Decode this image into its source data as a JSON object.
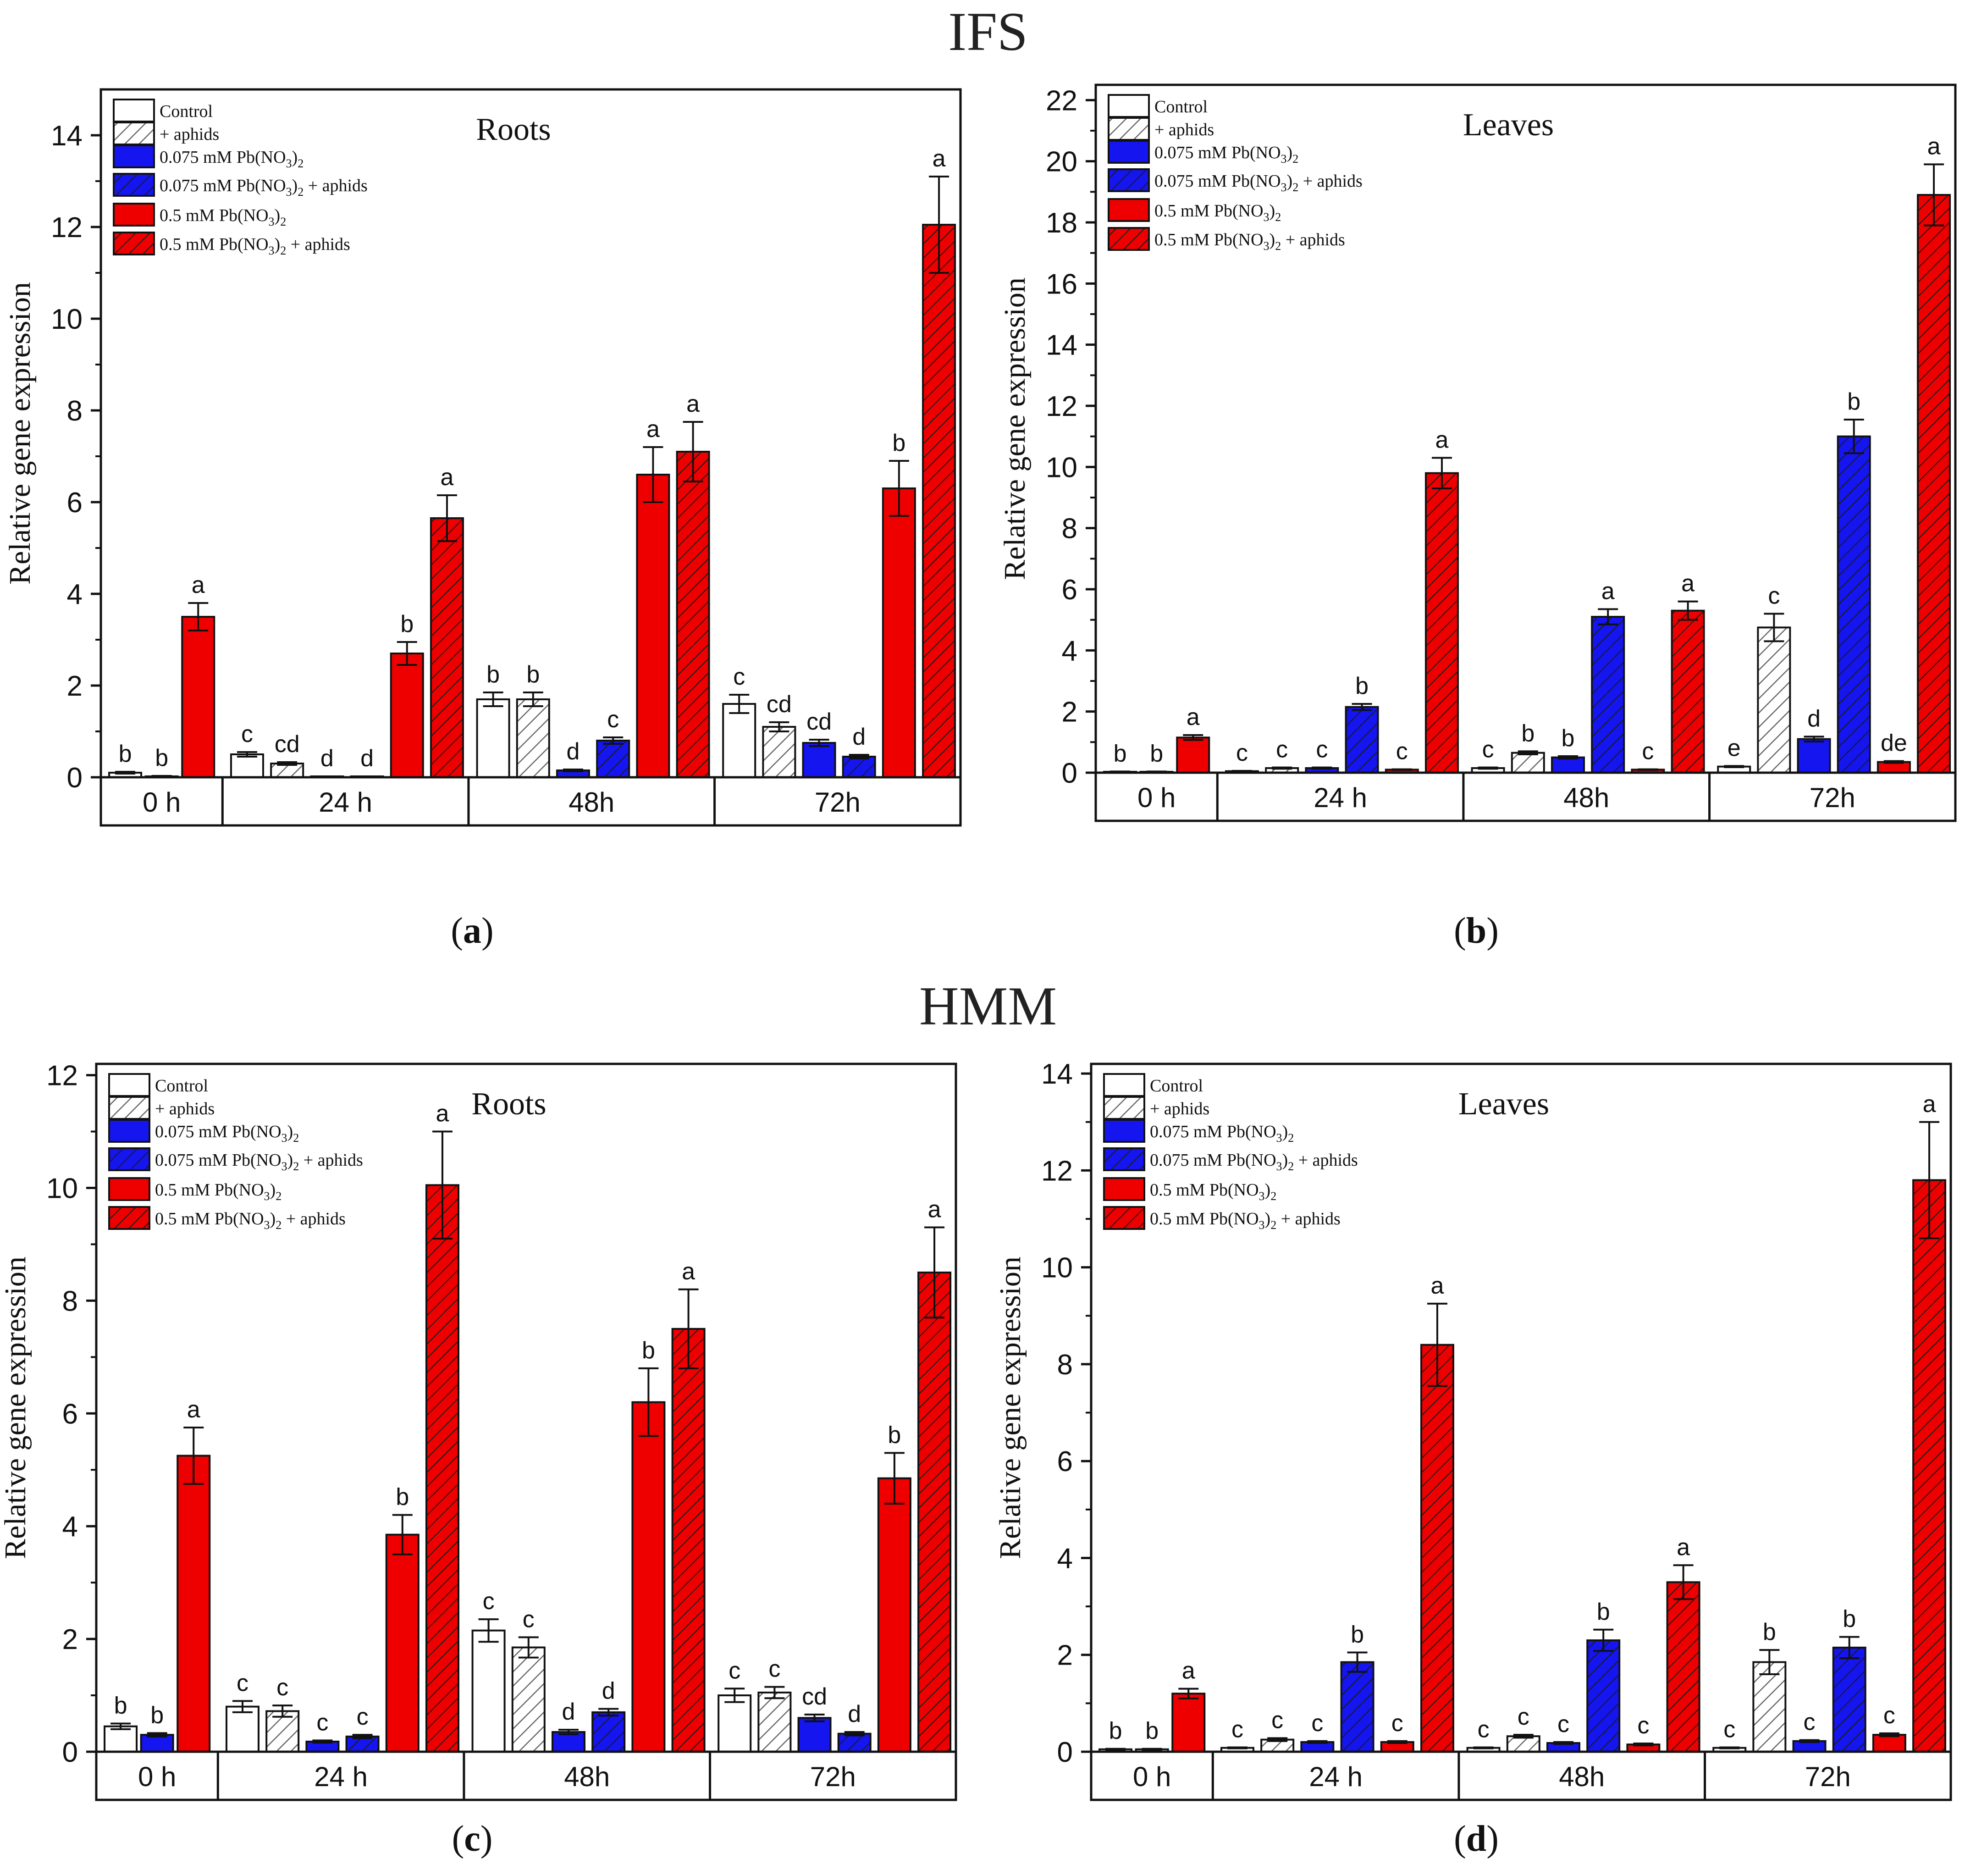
{
  "figure": {
    "groups": [
      "IFS",
      "HMM"
    ],
    "panel_labels": [
      "a",
      "b",
      "c",
      "d"
    ]
  },
  "colors": {
    "control": "#ffffff",
    "blue": "#1515f0",
    "red": "#ee0000",
    "hatch_gray": "#666666",
    "axis": "#111111"
  },
  "legend": {
    "entries": [
      {
        "parts": [
          {
            "t": "Control"
          }
        ],
        "fill": "white",
        "hatch": false
      },
      {
        "parts": [
          {
            "t": "+ aphids"
          }
        ],
        "fill": "white",
        "hatch": true
      },
      {
        "parts": [
          {
            "t": "0.075 mM Pb(NO"
          },
          {
            "t": "3",
            "sub": true
          },
          {
            "t": ")"
          },
          {
            "t": "2",
            "sub": true
          }
        ],
        "fill": "blue",
        "hatch": false
      },
      {
        "parts": [
          {
            "t": "0.075 mM Pb(NO"
          },
          {
            "t": "3",
            "sub": true
          },
          {
            "t": ")"
          },
          {
            "t": "2",
            "sub": true
          },
          {
            "t": " +  aphids"
          }
        ],
        "fill": "blue",
        "hatch": true
      },
      {
        "parts": [
          {
            "t": "0.5 mM Pb(NO"
          },
          {
            "t": "3",
            "sub": true
          },
          {
            "t": ")"
          },
          {
            "t": "2",
            "sub": true
          }
        ],
        "fill": "red",
        "hatch": false
      },
      {
        "parts": [
          {
            "t": "0.5 mM Pb(NO"
          },
          {
            "t": "3",
            "sub": true
          },
          {
            "t": ")"
          },
          {
            "t": "2",
            "sub": true
          },
          {
            "t": " + aphids"
          }
        ],
        "fill": "red",
        "hatch": true
      }
    ]
  },
  "chart_data": [
    {
      "id": "a",
      "group": "IFS",
      "type": "bar",
      "title": "Roots",
      "ylabel": "Relative gene expression",
      "ylim": [
        0,
        15
      ],
      "yticks": [
        0,
        2,
        4,
        6,
        8,
        10,
        12,
        14
      ],
      "time_labels": [
        "0 h",
        "24 h",
        "48h",
        "72h"
      ],
      "bars": [
        {
          "time": "0 h",
          "treatment": "Control",
          "value": 0.1,
          "err": 0.02,
          "letter": "b"
        },
        {
          "time": "0 h",
          "treatment": "+ aphids",
          "value": 0.02,
          "err": 0.01,
          "letter": "b"
        },
        {
          "time": "0 h",
          "treatment": "0.5 mM Pb(NO3)2",
          "value": 3.5,
          "err": 0.3,
          "letter": "a"
        },
        {
          "time": "24 h",
          "treatment": "Control",
          "value": 0.5,
          "err": 0.05,
          "letter": "c"
        },
        {
          "time": "24 h",
          "treatment": "+ aphids",
          "value": 0.3,
          "err": 0.03,
          "letter": "cd"
        },
        {
          "time": "24 h",
          "treatment": "0.075 mM Pb(NO3)2",
          "value": 0.02,
          "err": 0.0,
          "letter": "d"
        },
        {
          "time": "24 h",
          "treatment": "0.075 mM Pb(NO3)2 + aphids",
          "value": 0.02,
          "err": 0.0,
          "letter": "d"
        },
        {
          "time": "24 h",
          "treatment": "0.5 mM Pb(NO3)2",
          "value": 2.7,
          "err": 0.25,
          "letter": "b"
        },
        {
          "time": "24 h",
          "treatment": "0.5 mM Pb(NO3)2 + aphids",
          "value": 5.65,
          "err": 0.5,
          "letter": "a"
        },
        {
          "time": "48h",
          "treatment": "Control",
          "value": 1.7,
          "err": 0.15,
          "letter": "b"
        },
        {
          "time": "48h",
          "treatment": "+ aphids",
          "value": 1.7,
          "err": 0.15,
          "letter": "b"
        },
        {
          "time": "48h",
          "treatment": "0.075 mM Pb(NO3)2",
          "value": 0.15,
          "err": 0.02,
          "letter": "d"
        },
        {
          "time": "48h",
          "treatment": "0.075 mM Pb(NO3)2 + aphids",
          "value": 0.8,
          "err": 0.07,
          "letter": "c"
        },
        {
          "time": "48h",
          "treatment": "0.5 mM Pb(NO3)2",
          "value": 6.6,
          "err": 0.6,
          "letter": "a"
        },
        {
          "time": "48h",
          "treatment": "0.5 mM Pb(NO3)2 + aphids",
          "value": 7.1,
          "err": 0.65,
          "letter": "a"
        },
        {
          "time": "72h",
          "treatment": "Control",
          "value": 1.6,
          "err": 0.2,
          "letter": "c"
        },
        {
          "time": "72h",
          "treatment": "+ aphids",
          "value": 1.1,
          "err": 0.1,
          "letter": "cd"
        },
        {
          "time": "72h",
          "treatment": "0.075 mM Pb(NO3)2",
          "value": 0.75,
          "err": 0.07,
          "letter": "cd"
        },
        {
          "time": "72h",
          "treatment": "0.075 mM Pb(NO3)2 + aphids",
          "value": 0.45,
          "err": 0.04,
          "letter": "d"
        },
        {
          "time": "72h",
          "treatment": "0.5 mM Pb(NO3)2",
          "value": 6.3,
          "err": 0.6,
          "letter": "b"
        },
        {
          "time": "72h",
          "treatment": "0.5 mM Pb(NO3)2 + aphids",
          "value": 12.05,
          "err": 1.05,
          "letter": "a"
        }
      ]
    },
    {
      "id": "b",
      "group": "IFS",
      "type": "bar",
      "title": "Leaves",
      "ylabel": "Relative gene expression",
      "ylim": [
        0,
        22.5
      ],
      "yticks": [
        0,
        2,
        4,
        6,
        8,
        10,
        12,
        14,
        16,
        18,
        20,
        22
      ],
      "time_labels": [
        "0 h",
        "24 h",
        "48h",
        "72h"
      ],
      "bars": [
        {
          "time": "0 h",
          "treatment": "Control",
          "value": 0.03,
          "err": 0.01,
          "letter": "b"
        },
        {
          "time": "0 h",
          "treatment": "+ aphids",
          "value": 0.03,
          "err": 0.01,
          "letter": "b"
        },
        {
          "time": "0 h",
          "treatment": "0.5 mM Pb(NO3)2",
          "value": 1.15,
          "err": 0.08,
          "letter": "a"
        },
        {
          "time": "24 h",
          "treatment": "Control",
          "value": 0.05,
          "err": 0.01,
          "letter": "c"
        },
        {
          "time": "24 h",
          "treatment": "+ aphids",
          "value": 0.15,
          "err": 0.02,
          "letter": "c"
        },
        {
          "time": "24 h",
          "treatment": "0.075 mM Pb(NO3)2",
          "value": 0.15,
          "err": 0.02,
          "letter": "c"
        },
        {
          "time": "24 h",
          "treatment": "0.075 mM Pb(NO3)2 + aphids",
          "value": 2.15,
          "err": 0.1,
          "letter": "b"
        },
        {
          "time": "24 h",
          "treatment": "0.5 mM Pb(NO3)2",
          "value": 0.1,
          "err": 0.01,
          "letter": "c"
        },
        {
          "time": "24 h",
          "treatment": "0.5 mM Pb(NO3)2 + aphids",
          "value": 9.8,
          "err": 0.5,
          "letter": "a"
        },
        {
          "time": "48h",
          "treatment": "Control",
          "value": 0.15,
          "err": 0.02,
          "letter": "c"
        },
        {
          "time": "48h",
          "treatment": "+ aphids",
          "value": 0.65,
          "err": 0.05,
          "letter": "b"
        },
        {
          "time": "48h",
          "treatment": "0.075 mM Pb(NO3)2",
          "value": 0.5,
          "err": 0.04,
          "letter": "b"
        },
        {
          "time": "48h",
          "treatment": "0.075 mM Pb(NO3)2 + aphids",
          "value": 5.1,
          "err": 0.25,
          "letter": "a"
        },
        {
          "time": "48h",
          "treatment": "0.5 mM Pb(NO3)2",
          "value": 0.1,
          "err": 0.01,
          "letter": "c"
        },
        {
          "time": "48h",
          "treatment": "0.5 mM Pb(NO3)2 + aphids",
          "value": 5.3,
          "err": 0.3,
          "letter": "a"
        },
        {
          "time": "72h",
          "treatment": "Control",
          "value": 0.2,
          "err": 0.02,
          "letter": "e"
        },
        {
          "time": "72h",
          "treatment": "+ aphids",
          "value": 4.75,
          "err": 0.45,
          "letter": "c"
        },
        {
          "time": "72h",
          "treatment": "0.075 mM Pb(NO3)2",
          "value": 1.1,
          "err": 0.08,
          "letter": "d"
        },
        {
          "time": "72h",
          "treatment": "0.075 mM Pb(NO3)2 + aphids",
          "value": 11.0,
          "err": 0.55,
          "letter": "b"
        },
        {
          "time": "72h",
          "treatment": "0.5 mM Pb(NO3)2",
          "value": 0.35,
          "err": 0.03,
          "letter": "de"
        },
        {
          "time": "72h",
          "treatment": "0.5 mM Pb(NO3)2 + aphids",
          "value": 18.9,
          "err": 1.0,
          "letter": "a"
        }
      ]
    },
    {
      "id": "c",
      "group": "HMM",
      "type": "bar",
      "title": "Roots",
      "ylabel": "Relative gene expression",
      "ylim": [
        0,
        12.2
      ],
      "yticks": [
        0,
        2,
        4,
        6,
        8,
        10,
        12
      ],
      "time_labels": [
        "0 h",
        "24 h",
        "48h",
        "72h"
      ],
      "bars": [
        {
          "time": "0 h",
          "treatment": "Control",
          "value": 0.45,
          "err": 0.05,
          "letter": "b"
        },
        {
          "time": "0 h",
          "treatment": "0.075 mM Pb(NO3)2",
          "value": 0.3,
          "err": 0.03,
          "letter": "b"
        },
        {
          "time": "0 h",
          "treatment": "0.5 mM Pb(NO3)2",
          "value": 5.25,
          "err": 0.5,
          "letter": "a"
        },
        {
          "time": "24 h",
          "treatment": "Control",
          "value": 0.8,
          "err": 0.1,
          "letter": "c"
        },
        {
          "time": "24 h",
          "treatment": "+ aphids",
          "value": 0.72,
          "err": 0.1,
          "letter": "c"
        },
        {
          "time": "24 h",
          "treatment": "0.075 mM Pb(NO3)2",
          "value": 0.18,
          "err": 0.02,
          "letter": "c"
        },
        {
          "time": "24 h",
          "treatment": "0.075 mM Pb(NO3)2 + aphids",
          "value": 0.27,
          "err": 0.03,
          "letter": "c"
        },
        {
          "time": "24 h",
          "treatment": "0.5 mM Pb(NO3)2",
          "value": 3.85,
          "err": 0.35,
          "letter": "b"
        },
        {
          "time": "24 h",
          "treatment": "0.5 mM Pb(NO3)2 + aphids",
          "value": 10.05,
          "err": 0.95,
          "letter": "a"
        },
        {
          "time": "48h",
          "treatment": "Control",
          "value": 2.15,
          "err": 0.2,
          "letter": "c"
        },
        {
          "time": "48h",
          "treatment": "+ aphids",
          "value": 1.85,
          "err": 0.18,
          "letter": "c"
        },
        {
          "time": "48h",
          "treatment": "0.075 mM Pb(NO3)2",
          "value": 0.35,
          "err": 0.04,
          "letter": "d"
        },
        {
          "time": "48h",
          "treatment": "0.075 mM Pb(NO3)2 + aphids",
          "value": 0.7,
          "err": 0.06,
          "letter": "d"
        },
        {
          "time": "48h",
          "treatment": "0.5 mM Pb(NO3)2",
          "value": 6.2,
          "err": 0.6,
          "letter": "b"
        },
        {
          "time": "48h",
          "treatment": "0.5 mM Pb(NO3)2 + aphids",
          "value": 7.5,
          "err": 0.7,
          "letter": "a"
        },
        {
          "time": "72h",
          "treatment": "Control",
          "value": 1.0,
          "err": 0.12,
          "letter": "c"
        },
        {
          "time": "72h",
          "treatment": "+ aphids",
          "value": 1.05,
          "err": 0.1,
          "letter": "c"
        },
        {
          "time": "72h",
          "treatment": "0.075 mM Pb(NO3)2",
          "value": 0.6,
          "err": 0.06,
          "letter": "cd"
        },
        {
          "time": "72h",
          "treatment": "0.075 mM Pb(NO3)2 + aphids",
          "value": 0.32,
          "err": 0.03,
          "letter": "d"
        },
        {
          "time": "72h",
          "treatment": "0.5 mM Pb(NO3)2",
          "value": 4.85,
          "err": 0.45,
          "letter": "b"
        },
        {
          "time": "72h",
          "treatment": "0.5 mM Pb(NO3)2 + aphids",
          "value": 8.5,
          "err": 0.8,
          "letter": "a"
        }
      ]
    },
    {
      "id": "d",
      "group": "HMM",
      "type": "bar",
      "title": "Leaves",
      "ylabel": "Relative gene expression",
      "ylim": [
        0,
        14.2
      ],
      "yticks": [
        0,
        2,
        4,
        6,
        8,
        10,
        12,
        14
      ],
      "time_labels": [
        "0 h",
        "24 h",
        "48h",
        "72h"
      ],
      "bars": [
        {
          "time": "0 h",
          "treatment": "Control",
          "value": 0.05,
          "err": 0.01,
          "letter": "b"
        },
        {
          "time": "0 h",
          "treatment": "+ aphids",
          "value": 0.05,
          "err": 0.01,
          "letter": "b"
        },
        {
          "time": "0 h",
          "treatment": "0.5 mM Pb(NO3)2",
          "value": 1.2,
          "err": 0.1,
          "letter": "a"
        },
        {
          "time": "24 h",
          "treatment": "Control",
          "value": 0.08,
          "err": 0.01,
          "letter": "c"
        },
        {
          "time": "24 h",
          "treatment": "+ aphids",
          "value": 0.25,
          "err": 0.03,
          "letter": "c"
        },
        {
          "time": "24 h",
          "treatment": "0.075 mM Pb(NO3)2",
          "value": 0.2,
          "err": 0.02,
          "letter": "c"
        },
        {
          "time": "24 h",
          "treatment": "0.075 mM Pb(NO3)2 + aphids",
          "value": 1.85,
          "err": 0.2,
          "letter": "b"
        },
        {
          "time": "24 h",
          "treatment": "0.5 mM Pb(NO3)2",
          "value": 0.2,
          "err": 0.02,
          "letter": "c"
        },
        {
          "time": "24 h",
          "treatment": "0.5 mM Pb(NO3)2 + aphids",
          "value": 8.4,
          "err": 0.85,
          "letter": "a"
        },
        {
          "time": "48h",
          "treatment": "Control",
          "value": 0.08,
          "err": 0.01,
          "letter": "c"
        },
        {
          "time": "48h",
          "treatment": "+ aphids",
          "value": 0.32,
          "err": 0.03,
          "letter": "c"
        },
        {
          "time": "48h",
          "treatment": "0.075 mM Pb(NO3)2",
          "value": 0.18,
          "err": 0.02,
          "letter": "c"
        },
        {
          "time": "48h",
          "treatment": "0.075 mM Pb(NO3)2 + aphids",
          "value": 2.3,
          "err": 0.22,
          "letter": "b"
        },
        {
          "time": "48h",
          "treatment": "0.5 mM Pb(NO3)2",
          "value": 0.15,
          "err": 0.02,
          "letter": "c"
        },
        {
          "time": "48h",
          "treatment": "0.5 mM Pb(NO3)2 + aphids",
          "value": 3.5,
          "err": 0.35,
          "letter": "a"
        },
        {
          "time": "72h",
          "treatment": "Control",
          "value": 0.08,
          "err": 0.01,
          "letter": "c"
        },
        {
          "time": "72h",
          "treatment": "+ aphids",
          "value": 1.85,
          "err": 0.25,
          "letter": "b"
        },
        {
          "time": "72h",
          "treatment": "0.075 mM Pb(NO3)2",
          "value": 0.22,
          "err": 0.02,
          "letter": "c"
        },
        {
          "time": "72h",
          "treatment": "0.075 mM Pb(NO3)2 + aphids",
          "value": 2.15,
          "err": 0.22,
          "letter": "b"
        },
        {
          "time": "72h",
          "treatment": "0.5 mM Pb(NO3)2",
          "value": 0.35,
          "err": 0.03,
          "letter": "c"
        },
        {
          "time": "72h",
          "treatment": "0.5 mM Pb(NO3)2 + aphids",
          "value": 11.8,
          "err": 1.2,
          "letter": "a"
        }
      ]
    }
  ]
}
